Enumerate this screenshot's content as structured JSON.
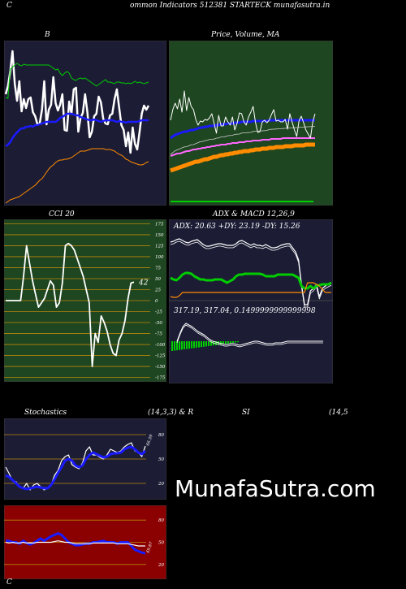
{
  "page": {
    "title_prefix": "C",
    "title": "ommon  Indicators 512381 STARTECK munafasutra.in",
    "watermark": "MunafaSutra.com",
    "bottom_left": "C"
  },
  "colors": {
    "background": "#000000",
    "panel_dark": "#1c1c35",
    "panel_green": "#1e4620",
    "panel_red": "#8b0000",
    "grid_orange": "#b8860b",
    "green_line": "#00cc00",
    "blue_line": "#1a1aff",
    "orange_line": "#ff8c00",
    "white": "#ffffff"
  },
  "chart_data": [
    {
      "id": "bollinger",
      "type": "line",
      "title": "B",
      "series": [
        {
          "color": "#ffffff",
          "values": [
            116,
            106,
            88,
            63,
            103,
            124,
            100,
            137,
            122,
            133,
            122,
            120,
            138,
            143,
            153,
            152,
            135,
            100,
            153,
            135,
            129,
            95,
            127,
            136,
            129,
            116,
            160,
            161,
            125,
            140,
            110,
            108,
            162,
            145,
            139,
            116,
            138,
            169,
            162,
            143,
            140,
            119,
            126,
            146,
            152,
            153,
            142,
            140,
            122,
            110,
            132,
            154,
            160,
            180,
            163,
            188,
            157,
            177,
            184,
            163,
            140,
            130,
            135,
            130
          ]
        },
        {
          "color": "#00cc00",
          "values": [
            120,
            121,
            85,
            83,
            80,
            78,
            80,
            81,
            79,
            80,
            80,
            80,
            80,
            80,
            80,
            80,
            80,
            80,
            80,
            80,
            82,
            84,
            86,
            85,
            90,
            93,
            90,
            88,
            90,
            96,
            98,
            99,
            97,
            96,
            97,
            96,
            98,
            100,
            102,
            104,
            106,
            104,
            102,
            100,
            98,
            101,
            101,
            102,
            103,
            101,
            101,
            102,
            102,
            103,
            102,
            103,
            102,
            100,
            102,
            101,
            102,
            103,
            102,
            101
          ]
        },
        {
          "color": "#1a1aff",
          "values": [
            180,
            178,
            175,
            170,
            166,
            163,
            160,
            158,
            158,
            156,
            156,
            155,
            156,
            154,
            154,
            153,
            152,
            151,
            150,
            150,
            150,
            150,
            150,
            148,
            145,
            144,
            142,
            140,
            140,
            140,
            141,
            142,
            142,
            144,
            145,
            146,
            147,
            148,
            148,
            147,
            148,
            149,
            150,
            149,
            148,
            148,
            148,
            148,
            149,
            150,
            149,
            150,
            150,
            151,
            150,
            150,
            150,
            150,
            150,
            149,
            148,
            148,
            148,
            148
          ]
        },
        {
          "color": "#ff8c00",
          "values": [
            250,
            248,
            246,
            245,
            244,
            243,
            242,
            240,
            238,
            236,
            234,
            232,
            230,
            228,
            225,
            222,
            220,
            216,
            212,
            208,
            205,
            203,
            200,
            198,
            197,
            197,
            196,
            196,
            195,
            194,
            192,
            190,
            188,
            186,
            186,
            186,
            185,
            184,
            183,
            183,
            183,
            183,
            183,
            183,
            184,
            184,
            184,
            185,
            186,
            188,
            190,
            191,
            193,
            196,
            197,
            199,
            200,
            201,
            202,
            203,
            203,
            202,
            200,
            199
          ]
        }
      ]
    },
    {
      "id": "price_ma",
      "type": "line",
      "title": "Price,  Volume,  MA",
      "series": [
        {
          "color": "#ffffff",
          "values": [
            148,
            135,
            127,
            134,
            122,
            138,
            112,
            136,
            120,
            131,
            135,
            147,
            154,
            149,
            150,
            147,
            148,
            145,
            140,
            152,
            164,
            142,
            155,
            155,
            144,
            150,
            154,
            144,
            160,
            152,
            139,
            140,
            150,
            154,
            144,
            138,
            131,
            150,
            163,
            162,
            150,
            148,
            151,
            148,
            141,
            135,
            149,
            148,
            150,
            150,
            147,
            159,
            140,
            150,
            160,
            168,
            149,
            143,
            151,
            160,
            165,
            170,
            150,
            140
          ]
        },
        {
          "color": "#1a1aff",
          "values": [
            170,
            168,
            166,
            165,
            164,
            163,
            162,
            162,
            161,
            160,
            160,
            159,
            158,
            157,
            157,
            156,
            156,
            155,
            155,
            155,
            154,
            154,
            153,
            153,
            153,
            152,
            152,
            152,
            151,
            151,
            151,
            150,
            150,
            150,
            150,
            150,
            149,
            149,
            149,
            149,
            149,
            149,
            149,
            148,
            148,
            148,
            148,
            148,
            148,
            148,
            148,
            148,
            148,
            148,
            148,
            148,
            148,
            148,
            148,
            148,
            148,
            148,
            148,
            148
          ]
        },
        {
          "color": "#ff8c00",
          "values": [
            210,
            209,
            208,
            207,
            206,
            205,
            204,
            203,
            202,
            201,
            200,
            199,
            199,
            198,
            197,
            196,
            196,
            195,
            194,
            193,
            193,
            192,
            191,
            191,
            190,
            190,
            189,
            189,
            188,
            188,
            187,
            187,
            186,
            186,
            186,
            185,
            185,
            184,
            184,
            184,
            183,
            183,
            183,
            182,
            182,
            182,
            181,
            181,
            181,
            181,
            180,
            180,
            180,
            180,
            179,
            179,
            179,
            179,
            179,
            178,
            178,
            178,
            178,
            178
          ]
        },
        {
          "color": "#ff66ff",
          "values": [
            192,
            191,
            190,
            189,
            189,
            188,
            187,
            186,
            186,
            185,
            184,
            184,
            183,
            183,
            182,
            182,
            181,
            181,
            180,
            180,
            179,
            179,
            178,
            178,
            178,
            177,
            177,
            176,
            176,
            176,
            175,
            175,
            175,
            174,
            174,
            174,
            173,
            173,
            173,
            173,
            172,
            172,
            172,
            172,
            171,
            171,
            171,
            171,
            171,
            170,
            170,
            170,
            170,
            170,
            170,
            170,
            170,
            170,
            170,
            170,
            170,
            170,
            170,
            170
          ]
        }
      ]
    },
    {
      "id": "cci",
      "type": "line",
      "title": "CCI 20",
      "value_label": "42",
      "y_ticks": [
        175,
        150,
        125,
        100,
        75,
        50,
        25,
        0,
        -25,
        -50,
        -75,
        -100,
        -125,
        -150,
        -175
      ],
      "ylim": [
        -185,
        185
      ],
      "series": [
        {
          "color": "#ffffff",
          "values": [
            0,
            0,
            0,
            0,
            0,
            0,
            55,
            125,
            85,
            45,
            15,
            -15,
            -5,
            5,
            25,
            45,
            35,
            -15,
            -5,
            40,
            125,
            130,
            125,
            115,
            95,
            75,
            55,
            25,
            -5,
            -150,
            -75,
            -95,
            -35,
            -50,
            -70,
            -100,
            -120,
            -125,
            -90,
            -75,
            -45,
            5,
            40,
            42
          ]
        }
      ]
    },
    {
      "id": "adx",
      "type": "line",
      "title": "ADX  & MACD 12,26,9",
      "text": "ADX: 20.63 +DY: 23.19 -DY: 15.26",
      "series": [
        {
          "color": "#ffffff",
          "values": [
            18,
            17,
            15,
            14,
            16,
            18,
            19,
            17,
            16,
            15,
            18,
            21,
            23,
            23,
            22,
            21,
            20,
            20,
            21,
            22,
            22,
            22,
            20,
            17,
            16,
            18,
            20,
            22,
            20,
            22,
            22,
            23,
            21,
            23,
            25,
            25,
            24,
            22,
            21,
            20,
            20,
            25,
            30,
            40,
            70,
            95,
            95,
            78,
            75,
            70,
            85,
            75,
            72,
            70,
            68
          ]
        },
        {
          "color": "#00cc00",
          "values": [
            62,
            64,
            65,
            62,
            58,
            56,
            56,
            57,
            60,
            62,
            64,
            64,
            65,
            65,
            65,
            64,
            64,
            64,
            66,
            68,
            66,
            64,
            60,
            58,
            58,
            57,
            57,
            57,
            57,
            57,
            57,
            58,
            60,
            60,
            60,
            60,
            58,
            58,
            58,
            58,
            58,
            58,
            60,
            62,
            72,
            75,
            75,
            72,
            75,
            72,
            71,
            70,
            70,
            70,
            68
          ]
        },
        {
          "color": "#ff8c00",
          "values": [
            85,
            86,
            86,
            84,
            80,
            80,
            80,
            80,
            80,
            80,
            80,
            80,
            80,
            80,
            80,
            80,
            80,
            80,
            80,
            80,
            80,
            80,
            80,
            80,
            80,
            80,
            80,
            80,
            80,
            80,
            80,
            80,
            80,
            80,
            80,
            80,
            80,
            80,
            80,
            80,
            80,
            80,
            80,
            80,
            80,
            80,
            68,
            68,
            68,
            70,
            72,
            76,
            80,
            80,
            80
          ]
        }
      ]
    },
    {
      "id": "macd",
      "type": "line",
      "text": "317.19,  317.04,  0.1499999999999998",
      "series": [
        {
          "color": "#ffffff",
          "values": [
            0,
            10,
            18,
            22,
            20,
            18,
            15,
            12,
            10,
            8,
            5,
            2,
            0,
            -1,
            -2,
            -3,
            -4,
            -4,
            -3,
            -3,
            -4,
            -5,
            -4,
            -3,
            -2,
            -1,
            0,
            0,
            -1,
            -2,
            -3,
            -3,
            -3,
            -2,
            -2,
            -2,
            -1,
            0,
            0,
            0,
            0,
            0,
            0,
            0,
            0,
            0,
            0,
            0,
            0,
            0
          ]
        }
      ]
    },
    {
      "id": "stochastics",
      "type": "line",
      "title": "Stochastics",
      "params": "(14,3,3) & R",
      "value_label": "66.59",
      "y_ticks": [
        80,
        50,
        20
      ],
      "ylim": [
        0,
        100
      ],
      "series": [
        {
          "color": "#ffffff",
          "values": [
            40,
            32,
            23,
            22,
            15,
            14,
            20,
            12,
            18,
            20,
            16,
            12,
            14,
            18,
            30,
            36,
            48,
            53,
            55,
            43,
            40,
            38,
            45,
            60,
            65,
            55,
            55,
            52,
            50,
            55,
            62,
            60,
            58,
            60,
            65,
            68,
            70,
            60,
            58,
            53,
            66
          ]
        },
        {
          "color": "#1a1aff",
          "values": [
            30,
            28,
            24,
            20,
            16,
            14,
            13,
            14,
            15,
            16,
            15,
            14,
            14,
            18,
            25,
            33,
            40,
            48,
            50,
            48,
            42,
            40,
            42,
            50,
            55,
            58,
            56,
            54,
            52,
            53,
            56,
            57,
            57,
            58,
            62,
            64,
            65,
            62,
            58,
            56,
            60
          ]
        }
      ]
    },
    {
      "id": "rsi",
      "type": "line",
      "title": "SI",
      "params": "(14,5",
      "value_label": "49.87",
      "y_ticks": [
        80,
        50,
        20
      ],
      "ylim": [
        0,
        100
      ],
      "series": [
        {
          "color": "#1a1aff",
          "values": [
            52,
            52,
            50,
            50,
            48,
            52,
            49,
            47,
            49,
            52,
            55,
            52,
            55,
            58,
            60,
            62,
            60,
            55,
            50,
            48,
            46,
            46,
            47,
            48,
            48,
            50,
            50,
            51,
            52,
            50,
            50,
            50,
            48,
            50,
            50,
            50,
            45,
            40,
            38,
            36,
            35
          ]
        },
        {
          "color": "#ffffff",
          "values": [
            50,
            49,
            50,
            49,
            49,
            50,
            49,
            49,
            49,
            50,
            50,
            50,
            50,
            50,
            51,
            52,
            51,
            50,
            50,
            49,
            48,
            48,
            48,
            48,
            48,
            49,
            49,
            49,
            49,
            49,
            49,
            49,
            48,
            48,
            48,
            48,
            47,
            46,
            45,
            45,
            45
          ]
        }
      ]
    }
  ]
}
